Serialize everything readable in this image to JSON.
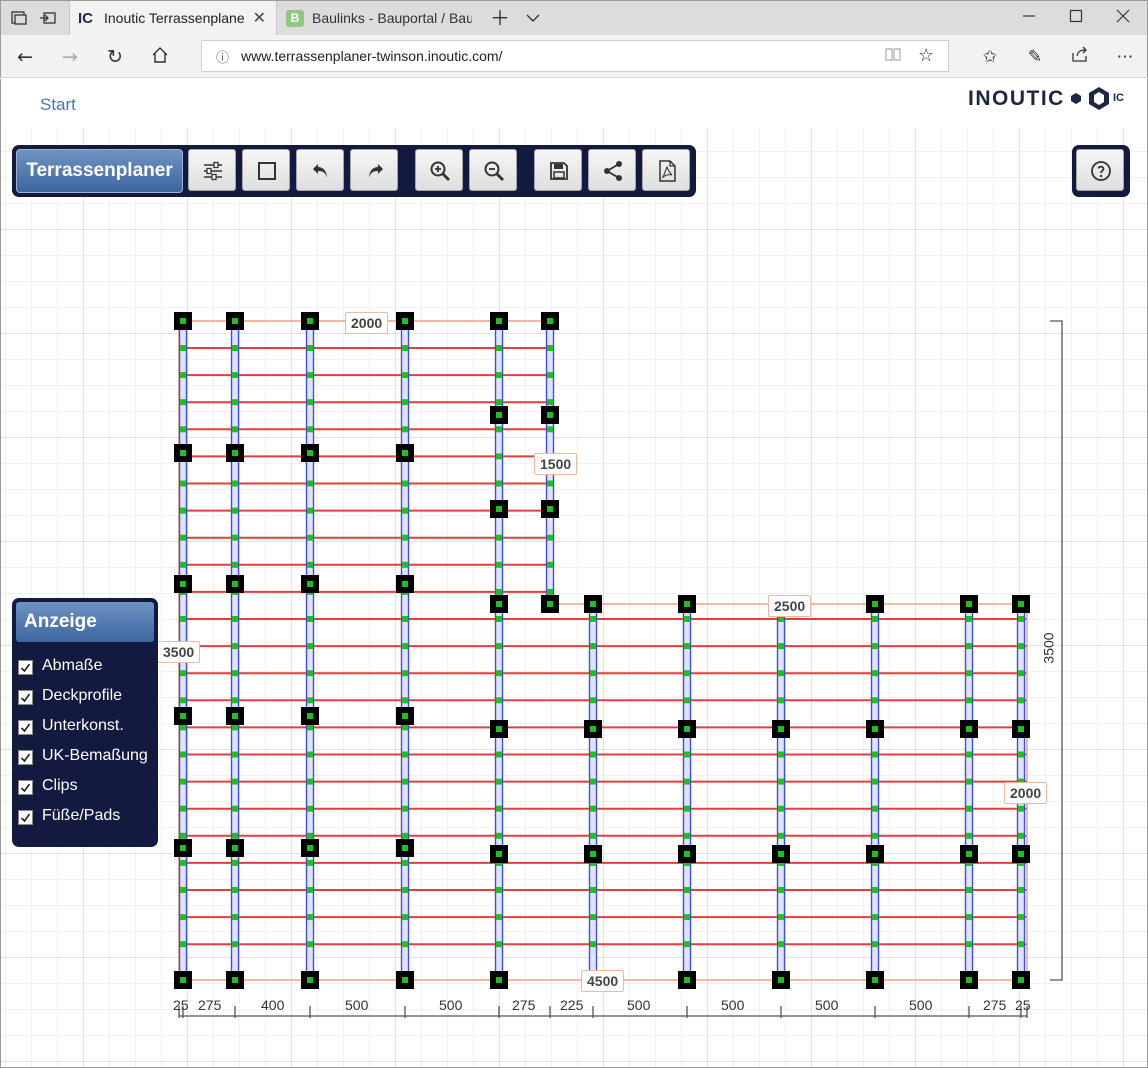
{
  "browser": {
    "tabs": [
      {
        "favicon": "IC",
        "title": "Inoutic Terrassenplaner",
        "active": true
      },
      {
        "favicon": "B",
        "title": "Baulinks - Bauportal / Baum",
        "active": false
      }
    ],
    "url": "www.terrassenplaner-twinson.inoutic.com/",
    "icons": {
      "tab_preview": "tab-preview-icon",
      "set_aside": "set-aside-tabs-icon",
      "new_tab": "plus-icon",
      "tab_list": "chevron-down-icon",
      "back": "back-arrow-icon",
      "forward": "forward-arrow-icon",
      "refresh": "refresh-icon",
      "home": "home-icon",
      "site_info": "info-icon",
      "reading_view": "reading-view-icon",
      "favorite": "star-icon",
      "favorites_hub": "favorites-list-icon",
      "notes": "pen-icon",
      "share": "share-icon",
      "more": "ellipsis-icon",
      "minimize": "minimize-icon",
      "maximize": "maximize-icon",
      "close": "close-icon"
    }
  },
  "page": {
    "start_link": "Start",
    "logo_text": "INOUTIC",
    "logo_badge": "IC",
    "accent_color": "#131a3f"
  },
  "toolbar": {
    "title": "Terrassenplaner",
    "buttons": [
      "settings-sliders-icon",
      "rectangle-icon",
      "undo-icon",
      "redo-icon",
      "zoom-in-icon",
      "zoom-out-icon",
      "save-icon",
      "share-icon",
      "pdf-icon"
    ],
    "help": "help-icon"
  },
  "anzeige": {
    "title": "Anzeige",
    "options": [
      {
        "label": "Abmaße",
        "checked": true
      },
      {
        "label": "Deckprofile",
        "checked": true
      },
      {
        "label": "Unterkonst.",
        "checked": true
      },
      {
        "label": "UK-Bemaßung",
        "checked": true
      },
      {
        "label": "Clips",
        "checked": true
      },
      {
        "label": "Füße/Pads",
        "checked": true
      }
    ]
  },
  "plan": {
    "dimensions": {
      "top_width": "2000",
      "notch_height": "1500",
      "lower_width": "2500",
      "left_height": "3500",
      "right_height": "2000",
      "bottom_width": "4500",
      "total_height": "3500"
    },
    "substructure_spacings": [
      "25",
      "275",
      "400",
      "500",
      "500",
      "275",
      "225",
      "500",
      "500",
      "500",
      "500",
      "275",
      "25"
    ],
    "colors": {
      "deck_boards": "#e83c3c",
      "joists": "#3f4fd6",
      "clips": "#1fbf1f",
      "feet": "#000000",
      "outline": "#f0a080"
    }
  }
}
